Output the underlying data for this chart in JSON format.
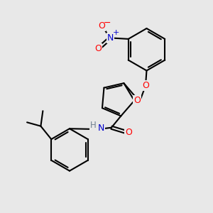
{
  "bg_color": "#e8e8e8",
  "bond_color": "#000000",
  "bond_width": 1.5,
  "atom_colors": {
    "O": "#ff0000",
    "N": "#0000cd",
    "C": "#000000",
    "H": "#708090"
  },
  "figsize": [
    3.0,
    3.0
  ],
  "dpi": 100
}
